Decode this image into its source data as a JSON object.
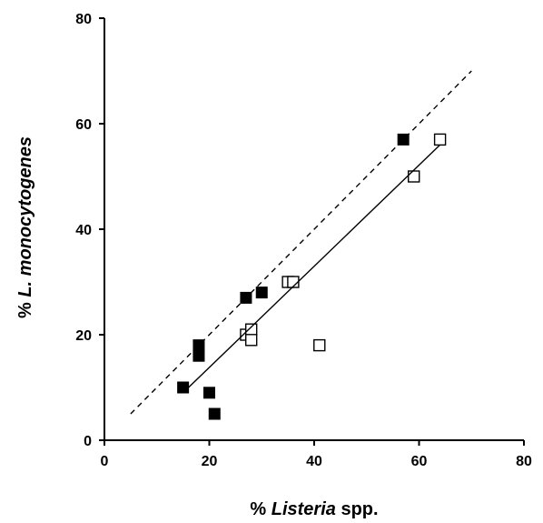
{
  "chart_data": {
    "type": "scatter",
    "title": "",
    "xlabel": {
      "prefix": "% ",
      "italic": "Listeria",
      "suffix": " spp."
    },
    "ylabel": {
      "prefix": "% ",
      "italic": "L. monocytogenes",
      "suffix": ""
    },
    "xlim": [
      0,
      80
    ],
    "ylim": [
      0,
      80
    ],
    "xticks": [
      "0",
      "20",
      "40",
      "60",
      "80"
    ],
    "yticks": [
      "0",
      "20",
      "40",
      "60",
      "80"
    ],
    "grid": false,
    "legend": "none",
    "series": [
      {
        "marker": "filled-square",
        "x": [
          15,
          18,
          18,
          20,
          21,
          27,
          30,
          57
        ],
        "y": [
          10,
          18,
          16,
          9,
          5,
          27,
          28,
          57
        ]
      },
      {
        "marker": "open-square",
        "x": [
          27,
          28,
          28,
          35,
          36,
          41,
          59,
          64
        ],
        "y": [
          20,
          21,
          19,
          30,
          30,
          18,
          50,
          57
        ]
      }
    ],
    "lines": [
      {
        "style": "dashed",
        "x": [
          5,
          70
        ],
        "y": [
          5,
          70
        ]
      },
      {
        "style": "solid",
        "x": [
          15,
          64
        ],
        "y": [
          9,
          56
        ]
      }
    ]
  }
}
